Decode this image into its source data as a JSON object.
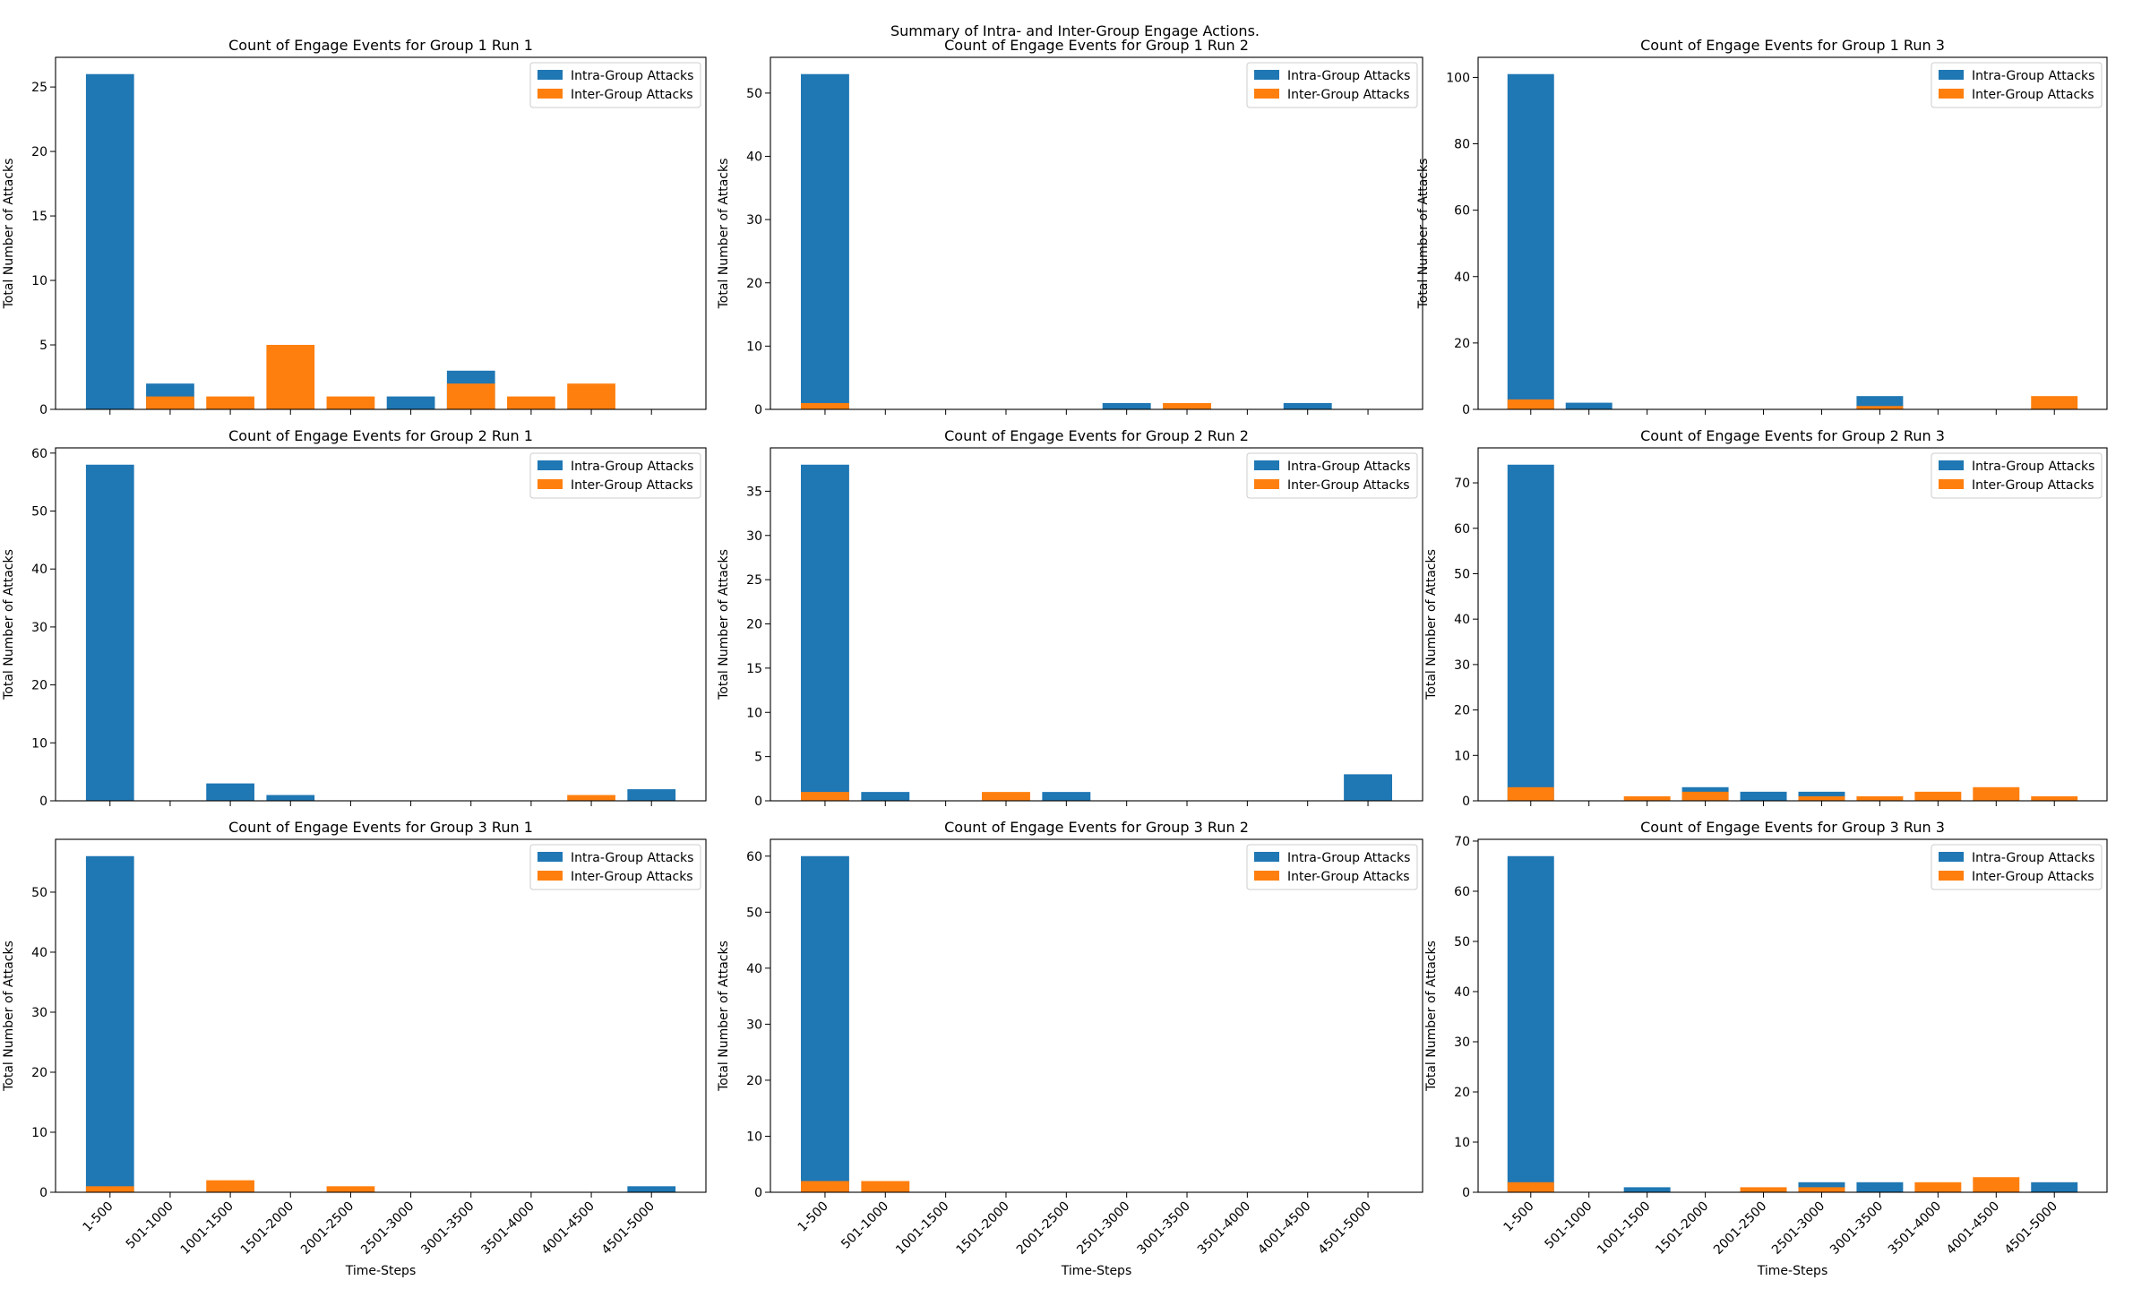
{
  "suptitle": "Summary of Intra- and Inter-Group Engage Actions.",
  "colors": {
    "intra": "#1f77b4",
    "inter": "#ff7f0e"
  },
  "chart_data": [
    {
      "type": "bar",
      "title": "Count of Engage Events for Group 1 Run 1",
      "categories": [
        "1-500",
        "501-1000",
        "1001-1500",
        "1501-2000",
        "2001-2500",
        "2501-3000",
        "3001-3500",
        "3501-4000",
        "4001-4500",
        "4501-5000"
      ],
      "series": [
        {
          "name": "Intra-Group Attacks",
          "values": [
            26,
            2,
            0,
            0,
            0,
            1,
            3,
            0,
            0,
            0
          ]
        },
        {
          "name": "Inter-Group Attacks",
          "values": [
            0,
            1,
            1,
            5,
            1,
            0,
            2,
            1,
            2,
            0
          ]
        }
      ],
      "yticks": [
        0,
        5,
        10,
        15,
        20,
        25
      ],
      "ylim": [
        0,
        27.3
      ],
      "ylabel": "Total Number of Attacks",
      "xlabel": "",
      "legend": "upper right"
    },
    {
      "type": "bar",
      "title": "Count of Engage Events for Group 1 Run 2",
      "categories": [
        "1-500",
        "501-1000",
        "1001-1500",
        "1501-2000",
        "2001-2500",
        "2501-3000",
        "3001-3500",
        "3501-4000",
        "4001-4500",
        "4501-5000"
      ],
      "series": [
        {
          "name": "Intra-Group Attacks",
          "values": [
            53,
            0,
            0,
            0,
            0,
            1,
            0,
            0,
            1,
            0
          ]
        },
        {
          "name": "Inter-Group Attacks",
          "values": [
            1,
            0,
            0,
            0,
            0,
            0,
            1,
            0,
            0,
            0
          ]
        }
      ],
      "yticks": [
        0,
        10,
        20,
        30,
        40,
        50
      ],
      "ylim": [
        0,
        55.65
      ],
      "ylabel": "Total Number of Attacks",
      "xlabel": "",
      "legend": "upper right"
    },
    {
      "type": "bar",
      "title": "Count of Engage Events for Group 1 Run 3",
      "categories": [
        "1-500",
        "501-1000",
        "1001-1500",
        "1501-2000",
        "2001-2500",
        "2501-3000",
        "3001-3500",
        "3501-4000",
        "4001-4500",
        "4501-5000"
      ],
      "series": [
        {
          "name": "Intra-Group Attacks",
          "values": [
            101,
            2,
            0,
            0,
            0,
            0,
            4,
            0,
            0,
            0
          ]
        },
        {
          "name": "Inter-Group Attacks",
          "values": [
            3,
            0,
            0,
            0,
            0,
            0,
            1,
            0,
            0,
            4
          ]
        }
      ],
      "yticks": [
        0,
        20,
        40,
        60,
        80,
        100
      ],
      "ylim": [
        0,
        106.05
      ],
      "ylabel": "Total Number of Attacks",
      "xlabel": "",
      "legend": "upper right"
    },
    {
      "type": "bar",
      "title": "Count of Engage Events for Group 2 Run 1",
      "categories": [
        "1-500",
        "501-1000",
        "1001-1500",
        "1501-2000",
        "2001-2500",
        "2501-3000",
        "3001-3500",
        "3501-4000",
        "4001-4500",
        "4501-5000"
      ],
      "series": [
        {
          "name": "Intra-Group Attacks",
          "values": [
            58,
            0,
            3,
            1,
            0,
            0,
            0,
            0,
            0,
            2
          ]
        },
        {
          "name": "Inter-Group Attacks",
          "values": [
            0,
            0,
            0,
            0,
            0,
            0,
            0,
            0,
            1,
            0
          ]
        }
      ],
      "yticks": [
        0,
        10,
        20,
        30,
        40,
        50,
        60
      ],
      "ylim": [
        0,
        60.9
      ],
      "ylabel": "Total Number of Attacks",
      "xlabel": "",
      "legend": "upper right"
    },
    {
      "type": "bar",
      "title": "Count of Engage Events for Group 2 Run 2",
      "categories": [
        "1-500",
        "501-1000",
        "1001-1500",
        "1501-2000",
        "2001-2500",
        "2501-3000",
        "3001-3500",
        "3501-4000",
        "4001-4500",
        "4501-5000"
      ],
      "series": [
        {
          "name": "Intra-Group Attacks",
          "values": [
            38,
            1,
            0,
            0,
            1,
            0,
            0,
            0,
            0,
            3
          ]
        },
        {
          "name": "Inter-Group Attacks",
          "values": [
            1,
            0,
            0,
            1,
            0,
            0,
            0,
            0,
            0,
            0
          ]
        }
      ],
      "yticks": [
        0,
        5,
        10,
        15,
        20,
        25,
        30,
        35
      ],
      "ylim": [
        0,
        39.9
      ],
      "ylabel": "Total Number of Attacks",
      "xlabel": "",
      "legend": "upper right"
    },
    {
      "type": "bar",
      "title": "Count of Engage Events for Group 2 Run 3",
      "categories": [
        "1-500",
        "501-1000",
        "1001-1500",
        "1501-2000",
        "2001-2500",
        "2501-3000",
        "3001-3500",
        "3501-4000",
        "4001-4500",
        "4501-5000"
      ],
      "series": [
        {
          "name": "Intra-Group Attacks",
          "values": [
            74,
            0,
            0,
            3,
            2,
            2,
            0,
            0,
            0,
            0
          ]
        },
        {
          "name": "Inter-Group Attacks",
          "values": [
            3,
            0,
            1,
            2,
            0,
            1,
            1,
            2,
            3,
            1
          ]
        }
      ],
      "yticks": [
        0,
        10,
        20,
        30,
        40,
        50,
        60,
        70
      ],
      "ylim": [
        0,
        77.7
      ],
      "ylabel": "Total Number of Attacks",
      "xlabel": "",
      "legend": "upper right"
    },
    {
      "type": "bar",
      "title": "Count of Engage Events for Group 3 Run 1",
      "categories": [
        "1-500",
        "501-1000",
        "1001-1500",
        "1501-2000",
        "2001-2500",
        "2501-3000",
        "3001-3500",
        "3501-4000",
        "4001-4500",
        "4501-5000"
      ],
      "series": [
        {
          "name": "Intra-Group Attacks",
          "values": [
            56,
            0,
            0,
            0,
            0,
            0,
            0,
            0,
            0,
            1
          ]
        },
        {
          "name": "Inter-Group Attacks",
          "values": [
            1,
            0,
            2,
            0,
            1,
            0,
            0,
            0,
            0,
            0
          ]
        }
      ],
      "yticks": [
        0,
        10,
        20,
        30,
        40,
        50
      ],
      "ylim": [
        0,
        58.8
      ],
      "ylabel": "Total Number of Attacks",
      "xlabel": "Time-Steps",
      "legend": "upper right"
    },
    {
      "type": "bar",
      "title": "Count of Engage Events for Group 3 Run 2",
      "categories": [
        "1-500",
        "501-1000",
        "1001-1500",
        "1501-2000",
        "2001-2500",
        "2501-3000",
        "3001-3500",
        "3501-4000",
        "4001-4500",
        "4501-5000"
      ],
      "series": [
        {
          "name": "Intra-Group Attacks",
          "values": [
            60,
            0,
            0,
            0,
            0,
            0,
            0,
            0,
            0,
            0
          ]
        },
        {
          "name": "Inter-Group Attacks",
          "values": [
            2,
            2,
            0,
            0,
            0,
            0,
            0,
            0,
            0,
            0
          ]
        }
      ],
      "yticks": [
        0,
        10,
        20,
        30,
        40,
        50,
        60
      ],
      "ylim": [
        0,
        63
      ],
      "ylabel": "Total Number of Attacks",
      "xlabel": "Time-Steps",
      "legend": "upper right"
    },
    {
      "type": "bar",
      "title": "Count of Engage Events for Group 3 Run 3",
      "categories": [
        "1-500",
        "501-1000",
        "1001-1500",
        "1501-2000",
        "2001-2500",
        "2501-3000",
        "3001-3500",
        "3501-4000",
        "4001-4500",
        "4501-5000"
      ],
      "series": [
        {
          "name": "Intra-Group Attacks",
          "values": [
            67,
            0,
            1,
            0,
            0,
            2,
            2,
            0,
            0,
            2
          ]
        },
        {
          "name": "Inter-Group Attacks",
          "values": [
            2,
            0,
            0,
            0,
            1,
            1,
            0,
            2,
            3,
            0
          ]
        }
      ],
      "yticks": [
        0,
        10,
        20,
        30,
        40,
        50,
        60,
        70
      ],
      "ylim": [
        0,
        70.35
      ],
      "ylabel": "Total Number of Attacks",
      "xlabel": "Time-Steps",
      "legend": "upper right"
    }
  ]
}
